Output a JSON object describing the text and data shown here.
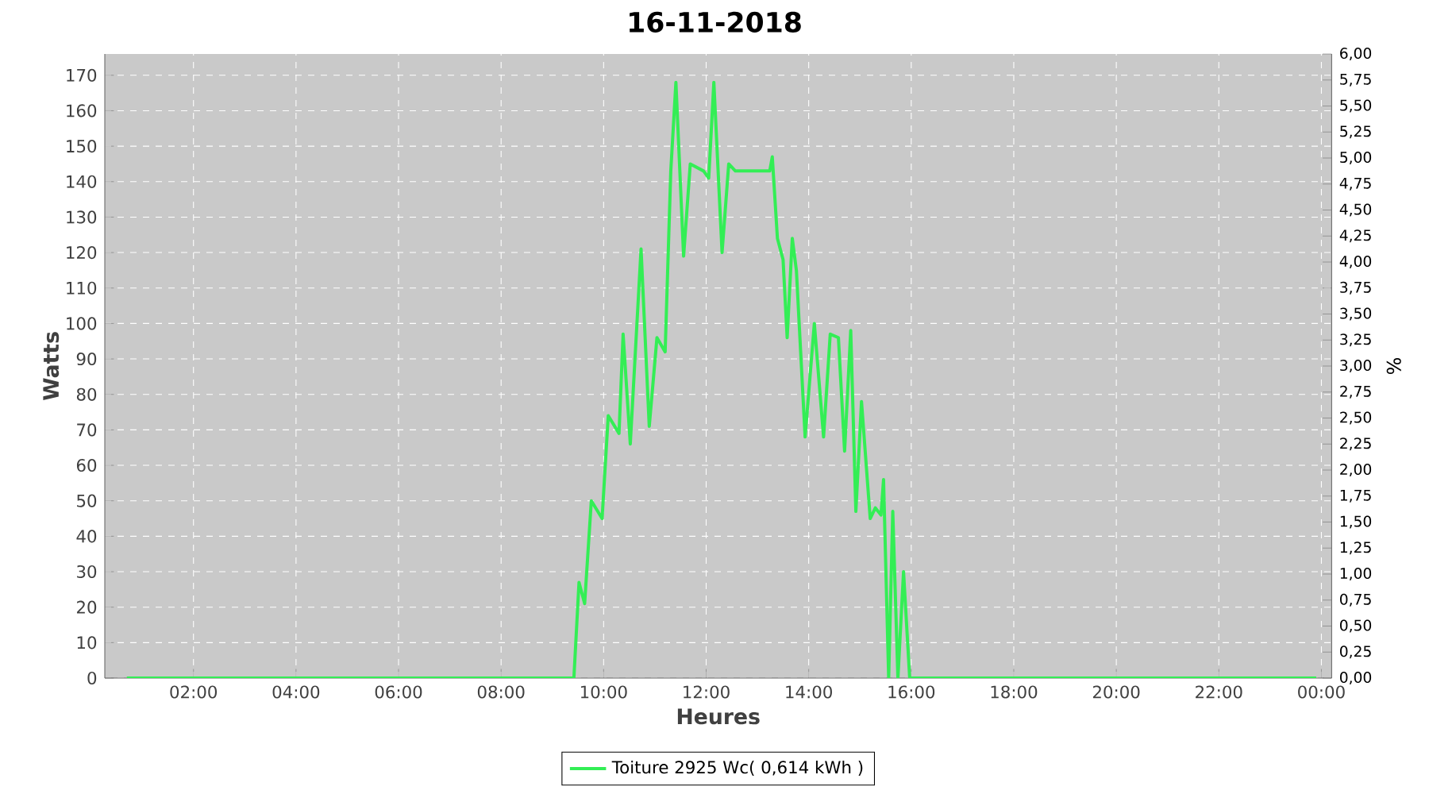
{
  "chart_data": {
    "type": "line",
    "title": "16-11-2018",
    "xlabel": "Heures",
    "ylabel": "Watts",
    "y2label": "%",
    "series": [
      {
        "name": "Toiture 2925 Wc( 0,614 kWh )",
        "color": "#33ee55",
        "x": [
          0.7,
          2,
          4,
          6,
          8,
          9.2,
          9.42,
          9.52,
          9.63,
          9.76,
          9.97,
          10.09,
          10.3,
          10.38,
          10.52,
          10.73,
          10.89,
          11.04,
          11.2,
          11.31,
          11.41,
          11.56,
          11.69,
          11.95,
          12.05,
          12.15,
          12.31,
          12.44,
          12.57,
          13.24,
          13.29,
          13.39,
          13.5,
          13.58,
          13.68,
          13.76,
          13.93,
          14.11,
          14.29,
          14.42,
          14.58,
          14.7,
          14.82,
          14.92,
          15.03,
          15.2,
          15.3,
          15.41,
          15.46,
          15.56,
          15.64,
          15.74,
          15.85,
          15.97,
          16.2,
          18,
          20,
          22,
          23.9
        ],
        "values": [
          0,
          0,
          0,
          0,
          0,
          0,
          0,
          27,
          21,
          50,
          45,
          74,
          69,
          97,
          66,
          121,
          71,
          96,
          92,
          143,
          168,
          119,
          145,
          143,
          141,
          168,
          120,
          145,
          143,
          143,
          147,
          124,
          118,
          96,
          124,
          115,
          68,
          100,
          68,
          97,
          96,
          64,
          98,
          47,
          78,
          45,
          48,
          46,
          56,
          0,
          47,
          0,
          30,
          0,
          0,
          0,
          0,
          0,
          0
        ]
      }
    ],
    "xlim": [
      0.27,
      24.2
    ],
    "xticks": [
      {
        "value": 2,
        "label": "02:00"
      },
      {
        "value": 4,
        "label": "04:00"
      },
      {
        "value": 6,
        "label": "06:00"
      },
      {
        "value": 8,
        "label": "08:00"
      },
      {
        "value": 10,
        "label": "10:00"
      },
      {
        "value": 12,
        "label": "12:00"
      },
      {
        "value": 14,
        "label": "14:00"
      },
      {
        "value": 16,
        "label": "16:00"
      },
      {
        "value": 18,
        "label": "18:00"
      },
      {
        "value": 20,
        "label": "20:00"
      },
      {
        "value": 22,
        "label": "22:00"
      },
      {
        "value": 24,
        "label": "00:00"
      }
    ],
    "ylim": [
      0,
      176
    ],
    "yticks": [
      0,
      10,
      20,
      30,
      40,
      50,
      60,
      70,
      80,
      90,
      100,
      110,
      120,
      130,
      140,
      150,
      160,
      170
    ],
    "y2lim": [
      0,
      6
    ],
    "y2ticks": [
      {
        "value": 0,
        "label": "0,00"
      },
      {
        "value": 0.25,
        "label": "0,25"
      },
      {
        "value": 0.5,
        "label": "0,50"
      },
      {
        "value": 0.75,
        "label": "0,75"
      },
      {
        "value": 1,
        "label": "1,00"
      },
      {
        "value": 1.25,
        "label": "1,25"
      },
      {
        "value": 1.5,
        "label": "1,50"
      },
      {
        "value": 1.75,
        "label": "1,75"
      },
      {
        "value": 2,
        "label": "2,00"
      },
      {
        "value": 2.25,
        "label": "2,25"
      },
      {
        "value": 2.5,
        "label": "2,50"
      },
      {
        "value": 2.75,
        "label": "2,75"
      },
      {
        "value": 3,
        "label": "3,00"
      },
      {
        "value": 3.25,
        "label": "3,25"
      },
      {
        "value": 3.5,
        "label": "3,50"
      },
      {
        "value": 3.75,
        "label": "3,75"
      },
      {
        "value": 4,
        "label": "4,00"
      },
      {
        "value": 4.25,
        "label": "4,25"
      },
      {
        "value": 4.5,
        "label": "4,50"
      },
      {
        "value": 4.75,
        "label": "4,75"
      },
      {
        "value": 5,
        "label": "5,00"
      },
      {
        "value": 5.25,
        "label": "5,25"
      },
      {
        "value": 5.5,
        "label": "5,50"
      },
      {
        "value": 5.75,
        "label": "5,75"
      },
      {
        "value": 6,
        "label": "6,00"
      }
    ],
    "grid": true,
    "legend": "bottom",
    "marker": "none",
    "line_style": "solid"
  }
}
